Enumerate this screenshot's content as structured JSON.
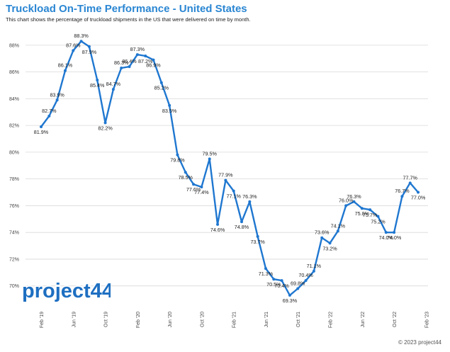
{
  "title": "Truckload On-Time Performance - United States",
  "subtitle": "This chart shows the percentage of truckload shipments in the US that were delivered on time by month.",
  "footer": "© 2023 project44",
  "logo_text": "project44",
  "colors": {
    "title": "#2a86d2",
    "line": "#1f77d0",
    "grid": "#d9d9d9",
    "logo": "#1e6fc1"
  },
  "chart_data": {
    "type": "line",
    "title": "Truckload On-Time Performance - United States",
    "xlabel": "",
    "ylabel": "",
    "ylim": [
      68.5,
      89
    ],
    "grid": true,
    "y_ticks": [
      "70%",
      "72%",
      "74%",
      "76%",
      "78%",
      "80%",
      "82%",
      "84%",
      "86%",
      "88%"
    ],
    "x_tick_labels": [
      "Feb '19",
      "Jun '19",
      "Oct '19",
      "Feb '20",
      "Jun '20",
      "Oct '20",
      "Feb '21",
      "Jun '21",
      "Oct '21",
      "Feb '22",
      "Jun '22",
      "Oct '22",
      "Feb '23"
    ],
    "series": [
      {
        "values": [
          81.9,
          82.7,
          83.9,
          86.1,
          87.6,
          88.3,
          87.9,
          85.4,
          82.2,
          84.7,
          86.3,
          86.4,
          87.3,
          87.2,
          86.9,
          85.2,
          83.5,
          79.8,
          78.5,
          77.6,
          77.4,
          79.5,
          74.6,
          77.9,
          77.1,
          74.8,
          76.3,
          73.7,
          71.3,
          70.5,
          70.4,
          69.3,
          69.8,
          70.4,
          71.1,
          73.6,
          73.2,
          74.1,
          76.0,
          76.3,
          75.8,
          75.7,
          75.2,
          74.0,
          74.0,
          76.7,
          77.7,
          77.0
        ],
        "labels": [
          "81.9%",
          "82.7%",
          "83.9%",
          "86.1%",
          "87.6%",
          "88.3%",
          "87.9%",
          "85.4%",
          "82.2%",
          "84.7%",
          "86.3%",
          "86.4%",
          "87.3%",
          "87.2%",
          "86.9%",
          "85.2%",
          "83.5%",
          "79.8%",
          "78.5%",
          "77.6%",
          "77.4%",
          "79.5%",
          "74.6%",
          "77.9%",
          "77.1%",
          "74.8%",
          "76.3%",
          "73.7%",
          "71.3%",
          "70.5%",
          "70.4%",
          "69.3%",
          "69.8%",
          "70.4%",
          "71.1%",
          "73.6%",
          "73.2%",
          "74.1%",
          "76.0%",
          "76.3%",
          "75.8%",
          "75.7%",
          "75.2%",
          "74.0%",
          "74.0%",
          "76.7%",
          "77.7%",
          "77.0%"
        ]
      }
    ]
  }
}
